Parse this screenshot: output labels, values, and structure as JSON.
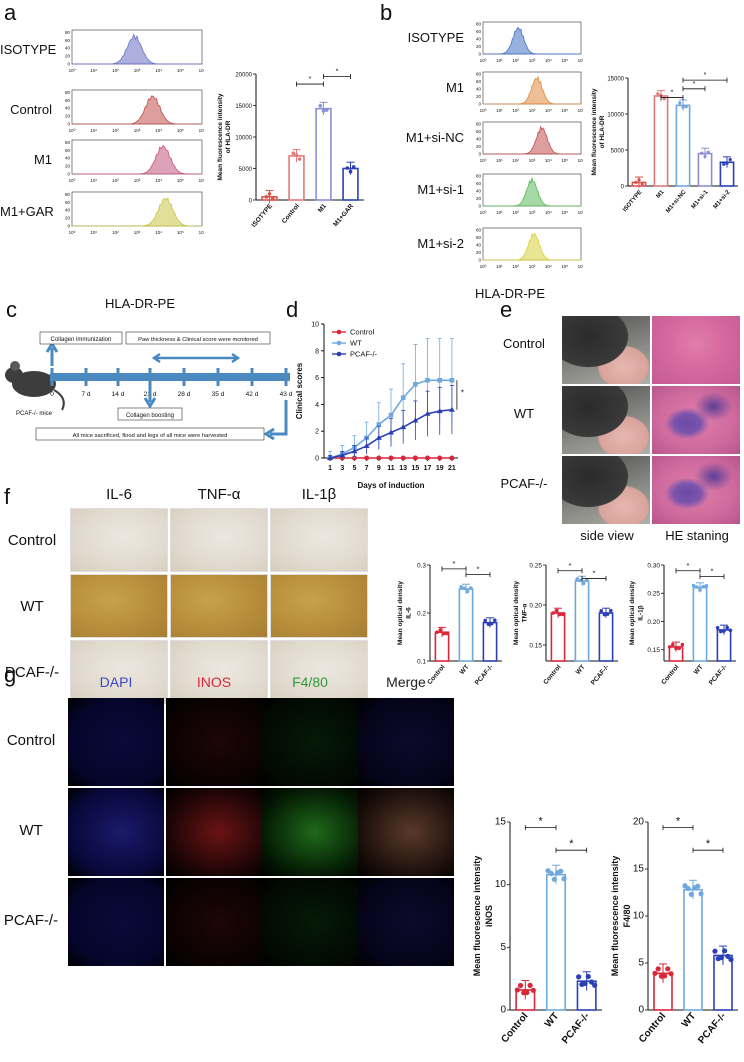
{
  "panels": {
    "a": {
      "label": "a",
      "rows": [
        "ISOTYPE",
        "Control",
        "M1",
        "M1+GAR"
      ],
      "xlabel": "HLA-DR-PE",
      "ticks": [
        "10⁰",
        "10¹",
        "10²",
        "10³",
        "10⁴",
        "10⁵",
        "10⁶"
      ],
      "yticks": [
        "0",
        "20",
        "40",
        "60",
        "80"
      ],
      "hist_colors": [
        "#6a6fc4",
        "#c0504d",
        "#c2557d",
        "#c9c446"
      ]
    },
    "b": {
      "label": "b",
      "rows": [
        "ISOTYPE",
        "M1",
        "M1+si-NC",
        "M1+si-1",
        "M1+si-2"
      ],
      "xlabel": "HLA-DR-PE",
      "hist_colors": [
        "#4472c4",
        "#e08a3c",
        "#c0504d",
        "#5cb85c",
        "#d9cf3a"
      ]
    },
    "c": {
      "label": "c",
      "box1": "Collagen immunization",
      "box2": "Paw thickness & Clinical score were mcnitored",
      "box3": "Collagen boosting",
      "box4": "All mice sacrificed, flood and legs of all mice were harvested",
      "mouse_label": "PCAF-/- mice",
      "timeline": [
        "0",
        "7 d",
        "14 d",
        "21 d",
        "28 d",
        "35 d",
        "42 d",
        "43 d"
      ]
    },
    "d": {
      "label": "d"
    },
    "e": {
      "label": "e",
      "rows": [
        "Control",
        "WT",
        "PCAF-/-"
      ],
      "cols": [
        "side view",
        "HE staning"
      ]
    },
    "f": {
      "label": "f",
      "cols": [
        "IL-6",
        "TNF-α",
        "IL-1β"
      ],
      "rows": [
        "Control",
        "WT",
        "PCAF-/-"
      ]
    },
    "g": {
      "label": "g",
      "cols": [
        "DAPI",
        "INOS",
        "F4/80",
        "Merge"
      ],
      "col_colors": [
        "#3a49c4",
        "#d9273a",
        "#2e9a3a",
        "#222222"
      ],
      "rows": [
        "Control",
        "WT",
        "PCAF-/-"
      ]
    }
  },
  "chart_data": [
    {
      "id": "a-bar",
      "type": "bar",
      "categories": [
        "ISOTYPE",
        "Control",
        "M1",
        "M1+GAR"
      ],
      "values": [
        500,
        7000,
        14500,
        5000
      ],
      "ylabel": "Mean fluorescence intensity of HLA-DR",
      "ylim": [
        0,
        20000
      ],
      "yticks": [
        0,
        5000,
        10000,
        15000,
        20000
      ],
      "colors": [
        "#d9534f",
        "#e07a7a",
        "#8a8fd4",
        "#2b3fb5"
      ],
      "sig": [
        "*",
        "*"
      ]
    },
    {
      "id": "b-bar",
      "type": "bar",
      "categories": [
        "ISOTYPE",
        "M1",
        "M1+si-NC",
        "M1+si-1",
        "M1+si-2"
      ],
      "values": [
        500,
        12500,
        11200,
        4500,
        3300
      ],
      "ylabel": "Mean fluorescence intensity of HLA-DR",
      "ylim": [
        0,
        15000
      ],
      "yticks": [
        0,
        5000,
        10000,
        15000
      ],
      "colors": [
        "#d9534f",
        "#e07a7a",
        "#6fa8dc",
        "#8a8fd4",
        "#2b3fb5"
      ],
      "sig": [
        "*",
        "*",
        "*"
      ]
    },
    {
      "id": "d-line",
      "type": "line",
      "x": [
        1,
        3,
        5,
        7,
        9,
        11,
        13,
        15,
        17,
        19,
        21
      ],
      "series": [
        {
          "name": "Control",
          "values": [
            0,
            0,
            0,
            0,
            0,
            0,
            0,
            0,
            0,
            0,
            0
          ],
          "color": "#d9273a"
        },
        {
          "name": "WT",
          "values": [
            0,
            0.3,
            0.8,
            1.5,
            2.5,
            3.2,
            4.5,
            5.5,
            5.8,
            5.8,
            5.8
          ],
          "color": "#6fa8dc"
        },
        {
          "name": "PCAF-/-",
          "values": [
            0,
            0.2,
            0.5,
            0.9,
            1.5,
            1.9,
            2.3,
            2.8,
            3.3,
            3.5,
            3.6
          ],
          "color": "#2b3fb5"
        }
      ],
      "xlabel": "Days of induction",
      "ylabel": "Clinical scores",
      "ylim": [
        0,
        10
      ],
      "yticks": [
        0,
        2,
        4,
        6,
        8,
        10
      ],
      "sig": "*"
    },
    {
      "id": "f-il6",
      "type": "bar",
      "categories": [
        "Control",
        "WT",
        "PCAF-/-"
      ],
      "values": [
        0.16,
        0.25,
        0.18
      ],
      "ylabel": "Mean optical density IL-6",
      "ylim": [
        0.1,
        0.3
      ],
      "yticks": [
        "0.1",
        "0.2",
        "0.3"
      ],
      "colors": [
        "#d9273a",
        "#6fa8dc",
        "#2b3fb5"
      ],
      "sig": [
        "*",
        "*"
      ]
    },
    {
      "id": "f-tnf",
      "type": "bar",
      "categories": [
        "Control",
        "WT",
        "PCAF-/-"
      ],
      "values": [
        0.19,
        0.23,
        0.19
      ],
      "ylabel": "Mean optical density TNF-α",
      "ylim": [
        0.13,
        0.25
      ],
      "yticks": [
        "0.15",
        "0.20",
        "0.25"
      ],
      "colors": [
        "#d9273a",
        "#6fa8dc",
        "#2b3fb5"
      ],
      "sig": [
        "*",
        "*"
      ]
    },
    {
      "id": "f-il1b",
      "type": "bar",
      "categories": [
        "Control",
        "WT",
        "PCAF-/-"
      ],
      "values": [
        0.155,
        0.26,
        0.185
      ],
      "ylabel": "Mean optical density IL-1β",
      "ylim": [
        0.13,
        0.3
      ],
      "yticks": [
        "0.15",
        "0.20",
        "0.25",
        "0.30"
      ],
      "colors": [
        "#d9273a",
        "#6fa8dc",
        "#2b3fb5"
      ],
      "sig": [
        "*",
        "*"
      ]
    },
    {
      "id": "g-inos",
      "type": "bar",
      "categories": [
        "Control",
        "WT",
        "PCAF-/-"
      ],
      "values": [
        1.6,
        10.8,
        2.3
      ],
      "ylabel": "Mean fluorescence intensity iNOS",
      "ylim": [
        0,
        15
      ],
      "yticks": [
        "0",
        "5",
        "10",
        "15"
      ],
      "colors": [
        "#d9273a",
        "#6fa8dc",
        "#2b3fb5"
      ],
      "sig": [
        "*",
        "*"
      ]
    },
    {
      "id": "g-f480",
      "type": "bar",
      "categories": [
        "Control",
        "WT",
        "PCAF-/-"
      ],
      "values": [
        3.9,
        12.8,
        5.8
      ],
      "ylabel": "Mean fluorescence intensity F4/80",
      "ylim": [
        0,
        20
      ],
      "yticks": [
        "0",
        "5",
        "10",
        "15",
        "20"
      ],
      "colors": [
        "#d9273a",
        "#6fa8dc",
        "#2b3fb5"
      ],
      "sig": [
        "*",
        "*"
      ]
    }
  ]
}
